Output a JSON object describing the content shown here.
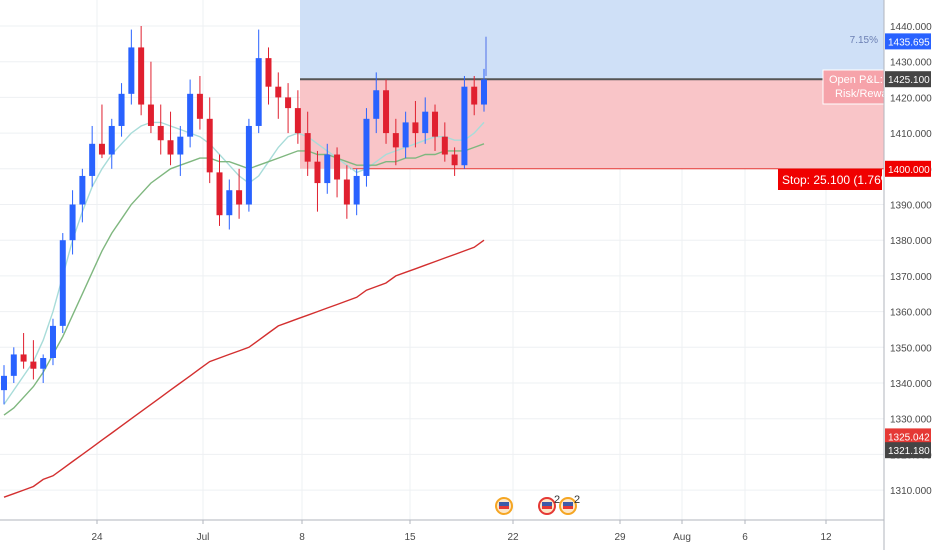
{
  "chart_data": {
    "type": "candlestick",
    "x_axis": {
      "ticks": [
        "24",
        "Jul",
        "8",
        "15",
        "22",
        "29",
        "Aug",
        "6",
        "12"
      ]
    },
    "y_axis": {
      "range": [
        1300,
        1445
      ],
      "ticks": [
        "1310.000",
        "1320.000",
        "1330.000",
        "1340.000",
        "1350.000",
        "1360.000",
        "1370.000",
        "1380.000",
        "1390.000",
        "1400.000",
        "1410.000",
        "1420.000",
        "1430.000",
        "1440.000"
      ]
    },
    "series": [
      {
        "kind": "ohlc",
        "up_color": "#2962ff",
        "down_color": "#e0202f",
        "values": [
          [
            1338,
            1345,
            1334,
            1342
          ],
          [
            1342,
            1350,
            1340,
            1348
          ],
          [
            1348,
            1354,
            1344,
            1346
          ],
          [
            1346,
            1352,
            1341,
            1344
          ],
          [
            1344,
            1348,
            1340,
            1347
          ],
          [
            1347,
            1358,
            1345,
            1356
          ],
          [
            1356,
            1382,
            1354,
            1380
          ],
          [
            1380,
            1394,
            1376,
            1390
          ],
          [
            1390,
            1400,
            1385,
            1398
          ],
          [
            1398,
            1412,
            1395,
            1407
          ],
          [
            1407,
            1418,
            1403,
            1404
          ],
          [
            1404,
            1414,
            1400,
            1412
          ],
          [
            1412,
            1424,
            1409,
            1421
          ],
          [
            1421,
            1439,
            1418,
            1434
          ],
          [
            1434,
            1440,
            1415,
            1418
          ],
          [
            1418,
            1430,
            1410,
            1412
          ],
          [
            1412,
            1418,
            1404,
            1408
          ],
          [
            1408,
            1416,
            1401,
            1404
          ],
          [
            1404,
            1412,
            1398,
            1409
          ],
          [
            1409,
            1425,
            1406,
            1421
          ],
          [
            1421,
            1426,
            1411,
            1414
          ],
          [
            1414,
            1420,
            1396,
            1399
          ],
          [
            1399,
            1404,
            1384,
            1387
          ],
          [
            1387,
            1397,
            1383,
            1394
          ],
          [
            1394,
            1400,
            1386,
            1390
          ],
          [
            1390,
            1414,
            1388,
            1412
          ],
          [
            1412,
            1439,
            1410,
            1431
          ],
          [
            1431,
            1434,
            1418,
            1423
          ],
          [
            1423,
            1427,
            1414,
            1420
          ],
          [
            1420,
            1424,
            1410,
            1417
          ],
          [
            1417,
            1422,
            1407,
            1410
          ],
          [
            1410,
            1416,
            1398,
            1402
          ],
          [
            1402,
            1405,
            1388,
            1396
          ],
          [
            1396,
            1407,
            1393,
            1404
          ],
          [
            1404,
            1406,
            1392,
            1397
          ],
          [
            1397,
            1401,
            1386,
            1390
          ],
          [
            1390,
            1400,
            1387,
            1398
          ],
          [
            1398,
            1417,
            1395,
            1414
          ],
          [
            1414,
            1427,
            1410,
            1422
          ],
          [
            1422,
            1425,
            1407,
            1410
          ],
          [
            1410,
            1414,
            1401,
            1406
          ],
          [
            1406,
            1416,
            1403,
            1413
          ],
          [
            1413,
            1419,
            1406,
            1410
          ],
          [
            1410,
            1420,
            1407,
            1416
          ],
          [
            1416,
            1418,
            1405,
            1409
          ],
          [
            1409,
            1413,
            1402,
            1404
          ],
          [
            1404,
            1406,
            1398,
            1401
          ],
          [
            1401,
            1426,
            1400,
            1423
          ],
          [
            1423,
            1426,
            1415,
            1418
          ],
          [
            1418,
            1428,
            1416,
            1425
          ]
        ]
      },
      {
        "kind": "moving-average",
        "color": "#a8dcd9",
        "values": [
          1334,
          1338,
          1342,
          1346,
          1352,
          1360,
          1370,
          1380,
          1388,
          1395,
          1400,
          1404,
          1407,
          1410,
          1412,
          1413,
          1413,
          1412,
          1411,
          1410,
          1409,
          1407,
          1404,
          1401,
          1398,
          1396,
          1398,
          1402,
          1406,
          1409,
          1410,
          1409,
          1407,
          1405,
          1403,
          1401,
          1399,
          1400,
          1402,
          1404,
          1405,
          1406,
          1407,
          1408,
          1409,
          1409,
          1408,
          1408,
          1410,
          1413
        ]
      },
      {
        "kind": "moving-average",
        "color": "#7fb77f",
        "values": [
          1331,
          1333,
          1336,
          1339,
          1343,
          1348,
          1353,
          1359,
          1365,
          1371,
          1377,
          1382,
          1386,
          1390,
          1393,
          1396,
          1398,
          1400,
          1401,
          1402,
          1403,
          1403,
          1402,
          1402,
          1401,
          1400,
          1401,
          1402,
          1403,
          1404,
          1405,
          1405,
          1404,
          1404,
          1403,
          1402,
          1401,
          1401,
          1401,
          1402,
          1402,
          1403,
          1403,
          1404,
          1404,
          1405,
          1405,
          1405,
          1406,
          1407
        ]
      },
      {
        "kind": "moving-average",
        "color": "#d32f2f",
        "values": [
          1308,
          1309,
          1310,
          1311,
          1313,
          1314,
          1316,
          1318,
          1320,
          1322,
          1324,
          1326,
          1328,
          1330,
          1332,
          1334,
          1336,
          1338,
          1340,
          1342,
          1344,
          1346,
          1347,
          1348,
          1349,
          1350,
          1352,
          1354,
          1356,
          1357,
          1358,
          1359,
          1360,
          1361,
          1362,
          1363,
          1364,
          1366,
          1367,
          1368,
          1370,
          1371,
          1372,
          1373,
          1374,
          1375,
          1376,
          1377,
          1378,
          1380
        ]
      }
    ],
    "position": {
      "entry": 1425.1,
      "target": 1445,
      "stop": 1400,
      "profit_color": "#cfe0f7",
      "loss_color": "#f9c5c8",
      "label_lines": [
        "Open P&L:",
        "Risk/Rewa"
      ],
      "stop_label": "Stop: 25.100 (1.76%",
      "target_pct": "7.15%"
    },
    "price_labels": [
      {
        "value": "1435.695",
        "bg": "#2962ff",
        "fg": "#ffffff"
      },
      {
        "value": "1425.100",
        "bg": "#454545",
        "fg": "#ffffff"
      },
      {
        "value": "1400.000",
        "bg": "#f00000",
        "fg": "#ffffff"
      },
      {
        "value": "1325.042",
        "bg": "#e53935",
        "fg": "#ffffff"
      },
      {
        "value": "1321.180",
        "bg": "#454545",
        "fg": "#ffffff"
      }
    ],
    "event_markers": [
      "2",
      "2"
    ]
  }
}
